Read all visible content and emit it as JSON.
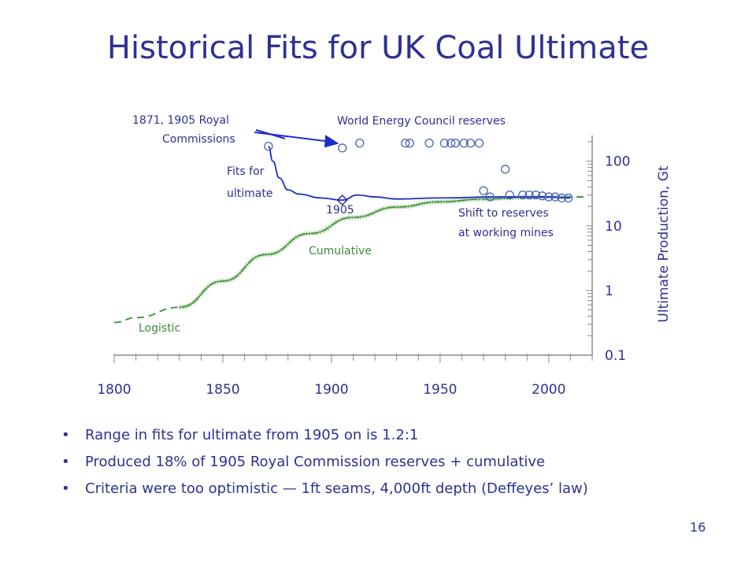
{
  "slide": {
    "title": "Historical Fits for UK Coal  Ultimate",
    "page_number": "16",
    "bullets": [
      "Range in fits for ultimate from 1905 on is 1.2:1",
      "Produced 18% of 1905 Royal Commission reserves + cumulative",
      "Criteria were too optimistic — 1ft seams, 4,000ft depth (Deffeyes’ law)"
    ]
  },
  "colors": {
    "text": "#2e3192",
    "fit_line": "#1c2ecf",
    "logistic": "#3a8b3a",
    "cumulative": "#9bc98c",
    "axis": "#8a8a8a"
  },
  "chart_data": {
    "type": "line",
    "x_ticks": [
      1800,
      1850,
      1900,
      1950,
      2000
    ],
    "xlim": [
      1800,
      2020
    ],
    "y_ticks": [
      "100",
      "10",
      "1",
      "0.1"
    ],
    "ylim": [
      0.1,
      250
    ],
    "y_scale": "log",
    "ylabel": "Ultimate Production, Gt",
    "annotations": {
      "royal": [
        "1871, 1905 Royal",
        "Commissions"
      ],
      "wec": "World Energy Council reserves",
      "fits": [
        "Fits for",
        "ultimate"
      ],
      "y1905": "1905",
      "shift": [
        "Shift to reserves",
        "at working mines"
      ],
      "cumulative": "Cumulative",
      "logistic": "Logistic"
    },
    "series": [
      {
        "name": "Fits for ultimate",
        "x": [
          1871,
          1873,
          1876,
          1880,
          1885,
          1895,
          1905,
          1912,
          1920,
          1930,
          1950,
          1975,
          2000,
          2010
        ],
        "y": [
          170,
          100,
          55,
          36,
          31,
          27,
          25,
          30,
          28,
          26,
          27,
          28,
          28,
          27
        ]
      },
      {
        "name": "Cumulative",
        "x": [
          1830,
          1850,
          1870,
          1890,
          1910,
          1930,
          1950,
          1970,
          1990,
          2010
        ],
        "y": [
          0.55,
          1.4,
          3.6,
          7.6,
          13.5,
          19.5,
          23.5,
          26,
          27.5,
          28
        ]
      },
      {
        "name": "Logistic",
        "x": [
          1800,
          1810,
          1830,
          1850,
          1870,
          1890,
          1910,
          1930,
          1950,
          1970,
          1990,
          2010,
          2017
        ],
        "y": [
          0.32,
          0.38,
          0.55,
          1.4,
          3.6,
          7.6,
          13.5,
          19.5,
          23.5,
          26,
          27.5,
          28,
          28
        ]
      },
      {
        "name": "World Energy Council reserves",
        "x": [
          1905,
          1913,
          1934,
          1936,
          1945,
          1952,
          1955,
          1957,
          1961,
          1964,
          1968,
          1970,
          1973,
          1980,
          1982,
          1988,
          1991,
          1994,
          1997,
          2000,
          2003,
          2006,
          2009
        ],
        "y": [
          160,
          190,
          190,
          190,
          190,
          190,
          190,
          190,
          190,
          190,
          190,
          35,
          28,
          75,
          30,
          30,
          30,
          30,
          29,
          28,
          28,
          27,
          27
        ]
      }
    ],
    "markers": [
      {
        "label": "1905",
        "x": 1905,
        "y": 25,
        "shape": "diamond"
      }
    ]
  }
}
